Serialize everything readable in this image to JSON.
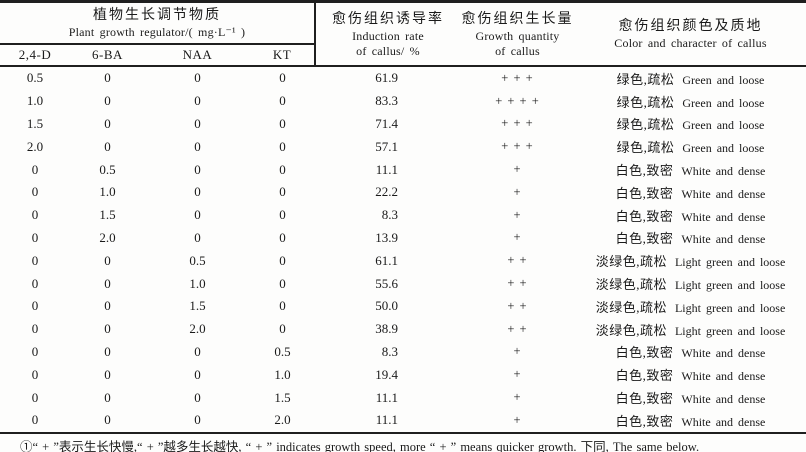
{
  "page": {
    "background": "#fdfdfc",
    "text_color": "#1a1a1a",
    "rule_color": "#1f1f1f"
  },
  "table": {
    "header": {
      "regulator_group": {
        "title_zh": "植物生长调节物质",
        "title_en": "Plant growth regulator/( mg·L⁻¹ )",
        "columns": [
          "2,4-D",
          "6-BA",
          "NAA",
          "KT"
        ]
      },
      "induction": {
        "zh": "愈伤组织诱导率",
        "en_line1": "Induction rate",
        "en_line2": "of callus/ %"
      },
      "growth": {
        "zh": "愈伤组织生长量",
        "en_line1": "Growth quantity",
        "en_line2": "of callus"
      },
      "color": {
        "zh": "愈伤组织颜色及质地",
        "en": "Color and character of callus"
      }
    },
    "rows": [
      {
        "d24": "0.5",
        "ba6": "0",
        "naa": "0",
        "kt": "0",
        "rate": "61.9",
        "growth": "+ + +",
        "color_zh": "绿色,疏松",
        "color_en": "Green and loose"
      },
      {
        "d24": "1.0",
        "ba6": "0",
        "naa": "0",
        "kt": "0",
        "rate": "83.3",
        "growth": "+ + + +",
        "color_zh": "绿色,疏松",
        "color_en": "Green and loose"
      },
      {
        "d24": "1.5",
        "ba6": "0",
        "naa": "0",
        "kt": "0",
        "rate": "71.4",
        "growth": "+ + +",
        "color_zh": "绿色,疏松",
        "color_en": "Green and loose"
      },
      {
        "d24": "2.0",
        "ba6": "0",
        "naa": "0",
        "kt": "0",
        "rate": "57.1",
        "growth": "+ + +",
        "color_zh": "绿色,疏松",
        "color_en": "Green and loose"
      },
      {
        "d24": "0",
        "ba6": "0.5",
        "naa": "0",
        "kt": "0",
        "rate": "11.1",
        "growth": "+",
        "color_zh": "白色,致密",
        "color_en": "White and dense"
      },
      {
        "d24": "0",
        "ba6": "1.0",
        "naa": "0",
        "kt": "0",
        "rate": "22.2",
        "growth": "+",
        "color_zh": "白色,致密",
        "color_en": "White and dense"
      },
      {
        "d24": "0",
        "ba6": "1.5",
        "naa": "0",
        "kt": "0",
        "rate": "8.3",
        "growth": "+",
        "color_zh": "白色,致密",
        "color_en": "White and dense"
      },
      {
        "d24": "0",
        "ba6": "2.0",
        "naa": "0",
        "kt": "0",
        "rate": "13.9",
        "growth": "+",
        "color_zh": "白色,致密",
        "color_en": "White and dense"
      },
      {
        "d24": "0",
        "ba6": "0",
        "naa": "0.5",
        "kt": "0",
        "rate": "61.1",
        "growth": "+ +",
        "color_zh": "淡绿色,疏松",
        "color_en": "Light green and loose"
      },
      {
        "d24": "0",
        "ba6": "0",
        "naa": "1.0",
        "kt": "0",
        "rate": "55.6",
        "growth": "+ +",
        "color_zh": "淡绿色,疏松",
        "color_en": "Light green and loose"
      },
      {
        "d24": "0",
        "ba6": "0",
        "naa": "1.5",
        "kt": "0",
        "rate": "50.0",
        "growth": "+ +",
        "color_zh": "淡绿色,疏松",
        "color_en": "Light green and loose"
      },
      {
        "d24": "0",
        "ba6": "0",
        "naa": "2.0",
        "kt": "0",
        "rate": "38.9",
        "growth": "+ +",
        "color_zh": "淡绿色,疏松",
        "color_en": "Light green and loose"
      },
      {
        "d24": "0",
        "ba6": "0",
        "naa": "0",
        "kt": "0.5",
        "rate": "8.3",
        "growth": "+",
        "color_zh": "白色,致密",
        "color_en": "White and dense"
      },
      {
        "d24": "0",
        "ba6": "0",
        "naa": "0",
        "kt": "1.0",
        "rate": "19.4",
        "growth": "+",
        "color_zh": "白色,致密",
        "color_en": "White and dense"
      },
      {
        "d24": "0",
        "ba6": "0",
        "naa": "0",
        "kt": "1.5",
        "rate": "11.1",
        "growth": "+",
        "color_zh": "白色,致密",
        "color_en": "White and dense"
      },
      {
        "d24": "0",
        "ba6": "0",
        "naa": "0",
        "kt": "2.0",
        "rate": "11.1",
        "growth": "+",
        "color_zh": "白色,致密",
        "color_en": "White and dense"
      }
    ]
  },
  "footnote": "①“ + ”表示生长快慢,“ + ”越多生长越快, “ + ” indicates growth speed, more “ + ” means quicker growth. 下同, The same below."
}
